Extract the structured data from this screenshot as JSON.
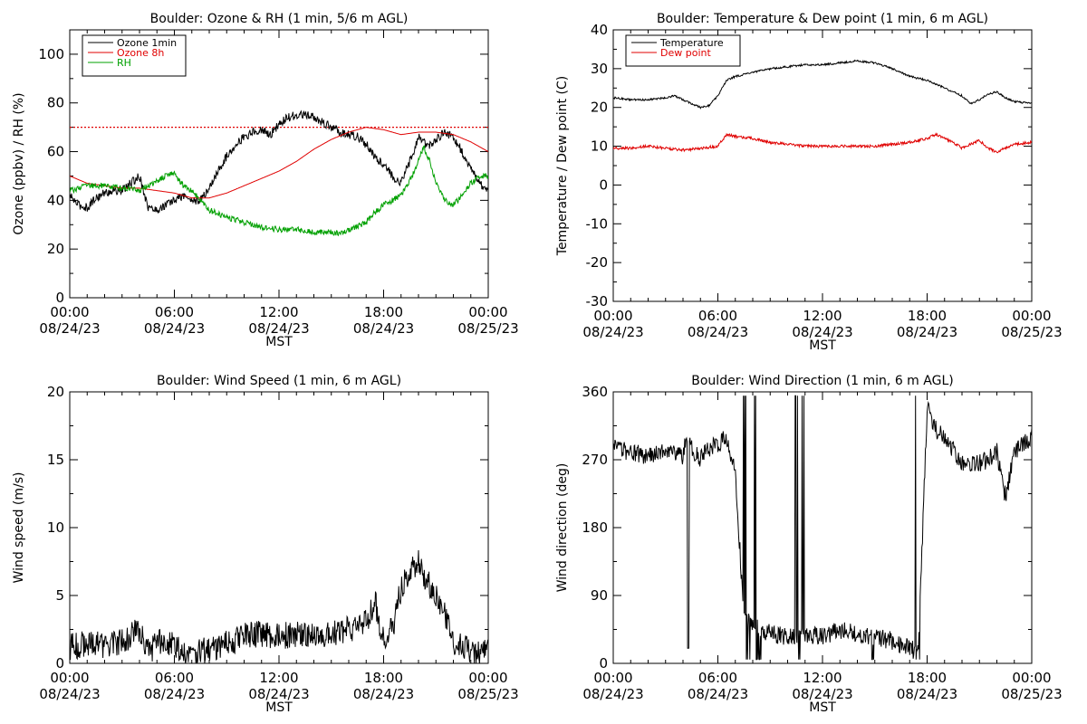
{
  "chart_data": [
    {
      "id": "ozone_rh",
      "type": "line",
      "title": "Boulder: Ozone & RH (1 min, 5/6 m AGL)",
      "xlabel": "MST",
      "ylabel": "Ozone (ppbv) / RH (%)",
      "ylim": [
        0,
        110
      ],
      "yticks": [
        0,
        20,
        40,
        60,
        80,
        100
      ],
      "xticks": [
        {
          "t": 0,
          "time": "00:00",
          "date": "08/24/23"
        },
        {
          "t": 6,
          "time": "06:00",
          "date": "08/24/23"
        },
        {
          "t": 12,
          "time": "12:00",
          "date": "08/24/23"
        },
        {
          "t": 18,
          "time": "18:00",
          "date": "08/24/23"
        },
        {
          "t": 24,
          "time": "00:00",
          "date": "08/25/23"
        }
      ],
      "reference_line": {
        "y": 70,
        "color": "#e00000",
        "style": "dotted"
      },
      "legend": {
        "position": "top-left",
        "entries": [
          "Ozone 1min",
          "Ozone 8h",
          "RH"
        ]
      },
      "series": [
        {
          "name": "Ozone 1min",
          "color": "#000000",
          "noise": 1.8,
          "x": [
            0,
            0.5,
            1,
            1.5,
            2,
            2.5,
            3,
            3.5,
            4,
            4.5,
            5,
            5.5,
            6,
            6.5,
            7,
            7.5,
            8,
            8.5,
            9,
            9.5,
            10,
            10.5,
            11,
            11.5,
            12,
            12.5,
            13,
            13.5,
            14,
            14.5,
            15,
            15.5,
            16,
            16.5,
            17,
            17.5,
            18,
            18.5,
            19,
            19.5,
            20,
            20.5,
            21,
            21.5,
            22,
            22.5,
            23,
            23.5,
            24
          ],
          "y": [
            42,
            38,
            37,
            41,
            43,
            44,
            44,
            47,
            50,
            37,
            36,
            38,
            40,
            42,
            40,
            40,
            45,
            52,
            58,
            63,
            66,
            68,
            69,
            67,
            71,
            74,
            75,
            75,
            74,
            72,
            70,
            68,
            67,
            66,
            63,
            58,
            55,
            50,
            47,
            56,
            66,
            62,
            65,
            68,
            66,
            60,
            53,
            47,
            44
          ]
        },
        {
          "name": "Ozone 8h",
          "color": "#e00000",
          "noise": 0,
          "x": [
            0,
            1,
            2,
            3,
            4,
            5,
            6,
            7,
            8,
            9,
            10,
            11,
            12,
            13,
            14,
            15,
            16,
            17,
            18,
            19,
            20,
            21,
            22,
            23,
            24
          ],
          "y": [
            50,
            47,
            46,
            45,
            45,
            44,
            43,
            41,
            41,
            43,
            46,
            49,
            52,
            56,
            61,
            65,
            68,
            70,
            69,
            67,
            68,
            68,
            67,
            64,
            60
          ]
        },
        {
          "name": "RH",
          "color": "#00a000",
          "noise": 1.2,
          "x": [
            0,
            0.5,
            1,
            2,
            3,
            4,
            5,
            5.5,
            6,
            6.5,
            7,
            7.5,
            8,
            9,
            10,
            11,
            12,
            13,
            14,
            15,
            15.5,
            16,
            17,
            17.5,
            18,
            18.5,
            19,
            19.5,
            20,
            20.3,
            20.7,
            21,
            21.5,
            22,
            22.5,
            23,
            23.5,
            24
          ],
          "y": [
            44,
            45,
            46,
            46,
            45,
            44,
            48,
            50,
            51,
            46,
            44,
            40,
            36,
            33,
            31,
            29,
            28,
            28,
            27,
            27,
            26,
            28,
            31,
            35,
            38,
            40,
            42,
            48,
            56,
            62,
            55,
            47,
            40,
            38,
            42,
            47,
            50,
            50
          ]
        }
      ]
    },
    {
      "id": "temp_dew",
      "type": "line",
      "title": "Boulder: Temperature & Dew point (1 min, 6 m AGL)",
      "xlabel": "MST",
      "ylabel": "Temperature / Dew point (C)",
      "ylim": [
        -30,
        40
      ],
      "yticks": [
        -30,
        -20,
        -10,
        0,
        10,
        20,
        30,
        40
      ],
      "xticks": [
        {
          "t": 0,
          "time": "00:00",
          "date": "08/24/23"
        },
        {
          "t": 6,
          "time": "06:00",
          "date": "08/24/23"
        },
        {
          "t": 12,
          "time": "12:00",
          "date": "08/24/23"
        },
        {
          "t": 18,
          "time": "18:00",
          "date": "08/24/23"
        },
        {
          "t": 24,
          "time": "00:00",
          "date": "08/25/23"
        }
      ],
      "legend": {
        "position": "top-left",
        "entries": [
          "Temperature",
          "Dew point"
        ]
      },
      "series": [
        {
          "name": "Temperature",
          "color": "#000000",
          "noise": 0.25,
          "x": [
            0,
            1,
            2,
            3,
            3.5,
            4,
            4.5,
            5,
            5.5,
            6,
            6.5,
            7,
            8,
            9,
            10,
            11,
            12,
            13,
            14,
            15,
            16,
            17,
            18,
            19,
            19.5,
            20,
            20.5,
            21,
            21.5,
            22,
            22.5,
            23,
            24
          ],
          "y": [
            22.5,
            22,
            22,
            22.5,
            23,
            22,
            21,
            20,
            20.5,
            23,
            27,
            28,
            29,
            30,
            30.5,
            31,
            31,
            31.5,
            32,
            31.5,
            30,
            28,
            27,
            25,
            24,
            23,
            21,
            22,
            23.5,
            24,
            22.5,
            21.5,
            21
          ]
        },
        {
          "name": "Dew point",
          "color": "#e00000",
          "noise": 0.35,
          "x": [
            0,
            1,
            2,
            3,
            4,
            5,
            6,
            6.5,
            7,
            8,
            9,
            10,
            11,
            12,
            13,
            14,
            15,
            16,
            17,
            18,
            18.5,
            19,
            19.5,
            20,
            20.5,
            21,
            21.5,
            22,
            22.5,
            23,
            24
          ],
          "y": [
            9.5,
            9.5,
            10,
            9.5,
            9,
            9.5,
            10,
            13,
            12.5,
            12,
            11,
            10.5,
            10,
            10,
            10,
            10,
            10,
            10.5,
            11,
            12,
            13,
            12,
            11,
            9.5,
            10.5,
            11.5,
            9.5,
            8.5,
            9.5,
            10.5,
            11
          ]
        }
      ]
    },
    {
      "id": "wind_speed",
      "type": "line",
      "title": "Boulder: Wind Speed (1 min, 6 m AGL)",
      "xlabel": "MST",
      "ylabel": "Wind speed (m/s)",
      "ylim": [
        0,
        20
      ],
      "yticks": [
        0,
        5,
        10,
        15,
        20
      ],
      "xticks": [
        {
          "t": 0,
          "time": "00:00",
          "date": "08/24/23"
        },
        {
          "t": 6,
          "time": "06:00",
          "date": "08/24/23"
        },
        {
          "t": 12,
          "time": "12:00",
          "date": "08/24/23"
        },
        {
          "t": 18,
          "time": "18:00",
          "date": "08/24/23"
        },
        {
          "t": 24,
          "time": "00:00",
          "date": "08/25/23"
        }
      ],
      "series": [
        {
          "name": "",
          "color": "#000000",
          "noise": 1.0,
          "x": [
            0,
            1,
            2,
            3,
            3.5,
            4,
            4.5,
            5,
            5.5,
            6,
            7,
            8,
            9,
            10,
            11,
            12,
            13,
            14,
            15,
            16,
            17,
            17.5,
            18,
            18.5,
            19,
            19.5,
            20,
            20.5,
            21,
            21.5,
            22,
            22.5,
            23,
            24
          ],
          "y": [
            1.2,
            1.5,
            1.3,
            1.6,
            2.0,
            2.5,
            0.8,
            1.5,
            1.8,
            1.2,
            0.7,
            1.0,
            1.5,
            2.0,
            2.2,
            2.0,
            2.2,
            2.0,
            2.2,
            2.5,
            3.0,
            4.5,
            1.8,
            2.5,
            5.5,
            7.0,
            7.5,
            6.0,
            5.0,
            3.5,
            1.5,
            1.2,
            1.0,
            0.8
          ]
        }
      ]
    },
    {
      "id": "wind_dir",
      "type": "line",
      "title": "Boulder: Wind Direction (1 min, 6 m AGL)",
      "xlabel": "MST",
      "ylabel": "Wind direction (deg)",
      "ylim": [
        0,
        360
      ],
      "yticks": [
        0,
        90,
        180,
        270,
        360
      ],
      "xticks": [
        {
          "t": 0,
          "time": "00:00",
          "date": "08/24/23"
        },
        {
          "t": 6,
          "time": "06:00",
          "date": "08/24/23"
        },
        {
          "t": 12,
          "time": "12:00",
          "date": "08/24/23"
        },
        {
          "t": 18,
          "time": "18:00",
          "date": "08/24/23"
        },
        {
          "t": 24,
          "time": "00:00",
          "date": "08/25/23"
        }
      ],
      "series": [
        {
          "name": "",
          "color": "#000000",
          "noise": 12,
          "x": [
            0,
            1,
            2,
            3,
            4,
            4.2,
            4.5,
            5,
            5.5,
            6,
            6.5,
            7,
            7.5,
            8,
            9,
            10,
            11,
            12,
            13,
            14,
            15,
            16,
            17,
            17.5,
            18,
            18.5,
            19,
            20,
            21,
            21.5,
            22,
            22.5,
            23,
            24
          ],
          "y": [
            285,
            280,
            275,
            285,
            275,
            300,
            285,
            270,
            285,
            290,
            300,
            250,
            60,
            50,
            40,
            35,
            40,
            35,
            45,
            40,
            35,
            30,
            20,
            15,
            340,
            310,
            300,
            265,
            265,
            270,
            280,
            220,
            280,
            300
          ]
        }
      ]
    }
  ]
}
